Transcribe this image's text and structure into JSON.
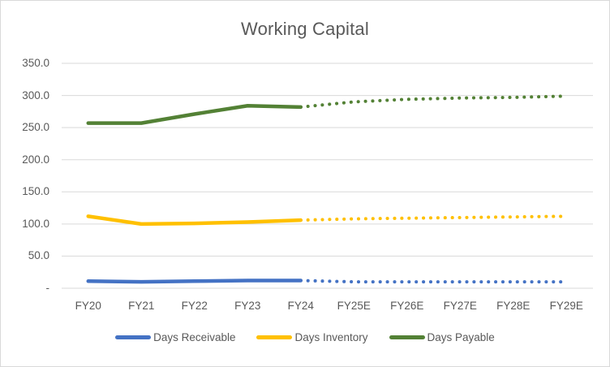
{
  "window": {
    "background": "#FFFFFF",
    "border_color": "#D9D9D9"
  },
  "chart_data": {
    "type": "line",
    "title": "Working Capital",
    "categories": [
      "FY20",
      "FY21",
      "FY22",
      "FY23",
      "FY24",
      "FY25E",
      "FY26E",
      "FY27E",
      "FY28E",
      "FY29E"
    ],
    "series": [
      {
        "name": "Days Receivable",
        "color": "#4472C4",
        "values": [
          11,
          10,
          11,
          12,
          12,
          10,
          10,
          10,
          10,
          10
        ]
      },
      {
        "name": "Days Inventory",
        "color": "#FFC000",
        "values": [
          112,
          100,
          101,
          103,
          106,
          108,
          109,
          110,
          111,
          112
        ]
      },
      {
        "name": "Days Payable",
        "color": "#538135",
        "values": [
          257,
          257,
          271,
          284,
          282,
          290,
          294,
          296,
          297,
          299
        ]
      }
    ],
    "forecast_start_index": 4,
    "forecast_style": "dotted",
    "y_ticks": [
      {
        "label": "350.0",
        "value": 350
      },
      {
        "label": "300.0",
        "value": 300
      },
      {
        "label": "250.0",
        "value": 250
      },
      {
        "label": "200.0",
        "value": 200
      },
      {
        "label": "150.0",
        "value": 150
      },
      {
        "label": "100.0",
        "value": 100
      },
      {
        "label": "50.0",
        "value": 50
      },
      {
        "label": "-",
        "value": 0
      }
    ],
    "ylim": [
      0,
      350
    ],
    "grid": true,
    "gridline_color": "#D9D9D9",
    "text_color": "#595959",
    "legend_position": "bottom"
  }
}
